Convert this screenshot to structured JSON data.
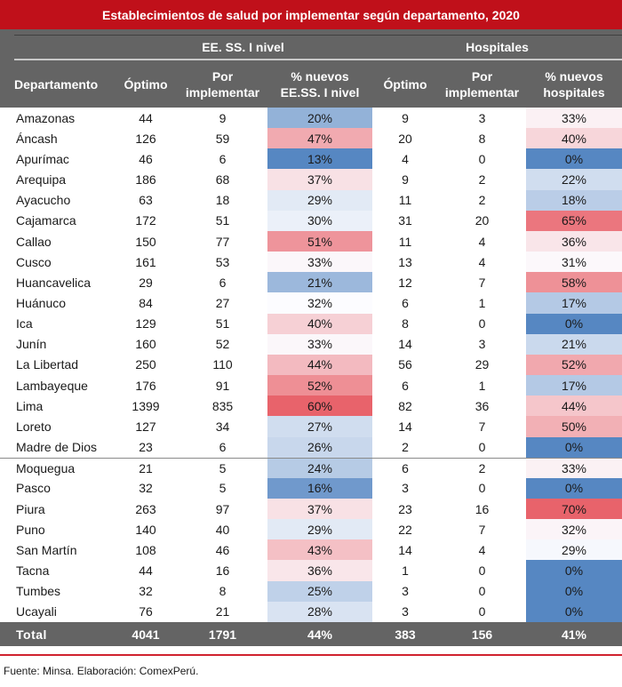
{
  "title": "Establecimientos de salud por implementar según departamento, 2020",
  "groups": {
    "eess": "EE. SS. I nivel",
    "hospitales": "Hospitales"
  },
  "columns": {
    "departamento": "Departamento",
    "optimo1": "Óptimo",
    "por_impl1_a": "Por",
    "por_impl1_b": "implementar",
    "pct1_a": "% nuevos",
    "pct1_b": "EE.SS. I nivel",
    "optimo2": "Óptimo",
    "por_impl2_a": "Por",
    "por_impl2_b": "implementar",
    "pct2_a": "% nuevos",
    "pct2_b": "hospitales"
  },
  "rows": [
    {
      "dept": "Amazonas",
      "opt1": "44",
      "por1": "9",
      "pct1": "20%",
      "opt2": "9",
      "por2": "3",
      "pct2": "33%"
    },
    {
      "dept": "Áncash",
      "opt1": "126",
      "por1": "59",
      "pct1": "47%",
      "opt2": "20",
      "por2": "8",
      "pct2": "40%"
    },
    {
      "dept": "Apurímac",
      "opt1": "46",
      "por1": "6",
      "pct1": "13%",
      "opt2": "4",
      "por2": "0",
      "pct2": "0%"
    },
    {
      "dept": "Arequipa",
      "opt1": "186",
      "por1": "68",
      "pct1": "37%",
      "opt2": "9",
      "por2": "2",
      "pct2": "22%"
    },
    {
      "dept": "Ayacucho",
      "opt1": "63",
      "por1": "18",
      "pct1": "29%",
      "opt2": "11",
      "por2": "2",
      "pct2": "18%"
    },
    {
      "dept": "Cajamarca",
      "opt1": "172",
      "por1": "51",
      "pct1": "30%",
      "opt2": "31",
      "por2": "20",
      "pct2": "65%"
    },
    {
      "dept": "Callao",
      "opt1": "150",
      "por1": "77",
      "pct1": "51%",
      "opt2": "11",
      "por2": "4",
      "pct2": "36%"
    },
    {
      "dept": "Cusco",
      "opt1": "161",
      "por1": "53",
      "pct1": "33%",
      "opt2": "13",
      "por2": "4",
      "pct2": "31%"
    },
    {
      "dept": "Huancavelica",
      "opt1": "29",
      "por1": "6",
      "pct1": "21%",
      "opt2": "12",
      "por2": "7",
      "pct2": "58%"
    },
    {
      "dept": "Huánuco",
      "opt1": "84",
      "por1": "27",
      "pct1": "32%",
      "opt2": "6",
      "por2": "1",
      "pct2": "17%"
    },
    {
      "dept": "Ica",
      "opt1": "129",
      "por1": "51",
      "pct1": "40%",
      "opt2": "8",
      "por2": "0",
      "pct2": "0%"
    },
    {
      "dept": "Junín",
      "opt1": "160",
      "por1": "52",
      "pct1": "33%",
      "opt2": "14",
      "por2": "3",
      "pct2": "21%"
    },
    {
      "dept": "La Libertad",
      "opt1": "250",
      "por1": "110",
      "pct1": "44%",
      "opt2": "56",
      "por2": "29",
      "pct2": "52%"
    },
    {
      "dept": "Lambayeque",
      "opt1": "176",
      "por1": "91",
      "pct1": "52%",
      "opt2": "6",
      "por2": "1",
      "pct2": "17%"
    },
    {
      "dept": "Lima",
      "opt1": "1399",
      "por1": "835",
      "pct1": "60%",
      "opt2": "82",
      "por2": "36",
      "pct2": "44%"
    },
    {
      "dept": "Loreto",
      "opt1": "127",
      "por1": "34",
      "pct1": "27%",
      "opt2": "14",
      "por2": "7",
      "pct2": "50%"
    },
    {
      "dept": "Madre de Dios",
      "opt1": "23",
      "por1": "6",
      "pct1": "26%",
      "opt2": "2",
      "por2": "0",
      "pct2": "0%"
    },
    {
      "dept": "Moquegua",
      "opt1": "21",
      "por1": "5",
      "pct1": "24%",
      "opt2": "6",
      "por2": "2",
      "pct2": "33%"
    },
    {
      "dept": "Pasco",
      "opt1": "32",
      "por1": "5",
      "pct1": "16%",
      "opt2": "3",
      "por2": "0",
      "pct2": "0%"
    },
    {
      "dept": "Piura",
      "opt1": "263",
      "por1": "97",
      "pct1": "37%",
      "opt2": "23",
      "por2": "16",
      "pct2": "70%"
    },
    {
      "dept": "Puno",
      "opt1": "140",
      "por1": "40",
      "pct1": "29%",
      "opt2": "22",
      "por2": "7",
      "pct2": "32%"
    },
    {
      "dept": "San Martín",
      "opt1": "108",
      "por1": "46",
      "pct1": "43%",
      "opt2": "14",
      "por2": "4",
      "pct2": "29%"
    },
    {
      "dept": "Tacna",
      "opt1": "44",
      "por1": "16",
      "pct1": "36%",
      "opt2": "1",
      "por2": "0",
      "pct2": "0%"
    },
    {
      "dept": "Tumbes",
      "opt1": "32",
      "por1": "8",
      "pct1": "25%",
      "opt2": "3",
      "por2": "0",
      "pct2": "0%"
    },
    {
      "dept": "Ucayali",
      "opt1": "76",
      "por1": "21",
      "pct1": "28%",
      "opt2": "3",
      "por2": "0",
      "pct2": "0%"
    }
  ],
  "total": {
    "dept": "Total",
    "opt1": "4041",
    "por1": "1791",
    "pct1": "44%",
    "opt2": "383",
    "por2": "156",
    "pct2": "41%"
  },
  "footer": "Fuente: Minsa. Elaboración: ComexPerú.",
  "colors": {
    "title_bg": "#c0101a",
    "header_bg": "#646464",
    "scale_low": "#5687c2",
    "scale_mid": "#fcfcff",
    "scale_high": "#e8636b",
    "rule": "#d0222e"
  }
}
